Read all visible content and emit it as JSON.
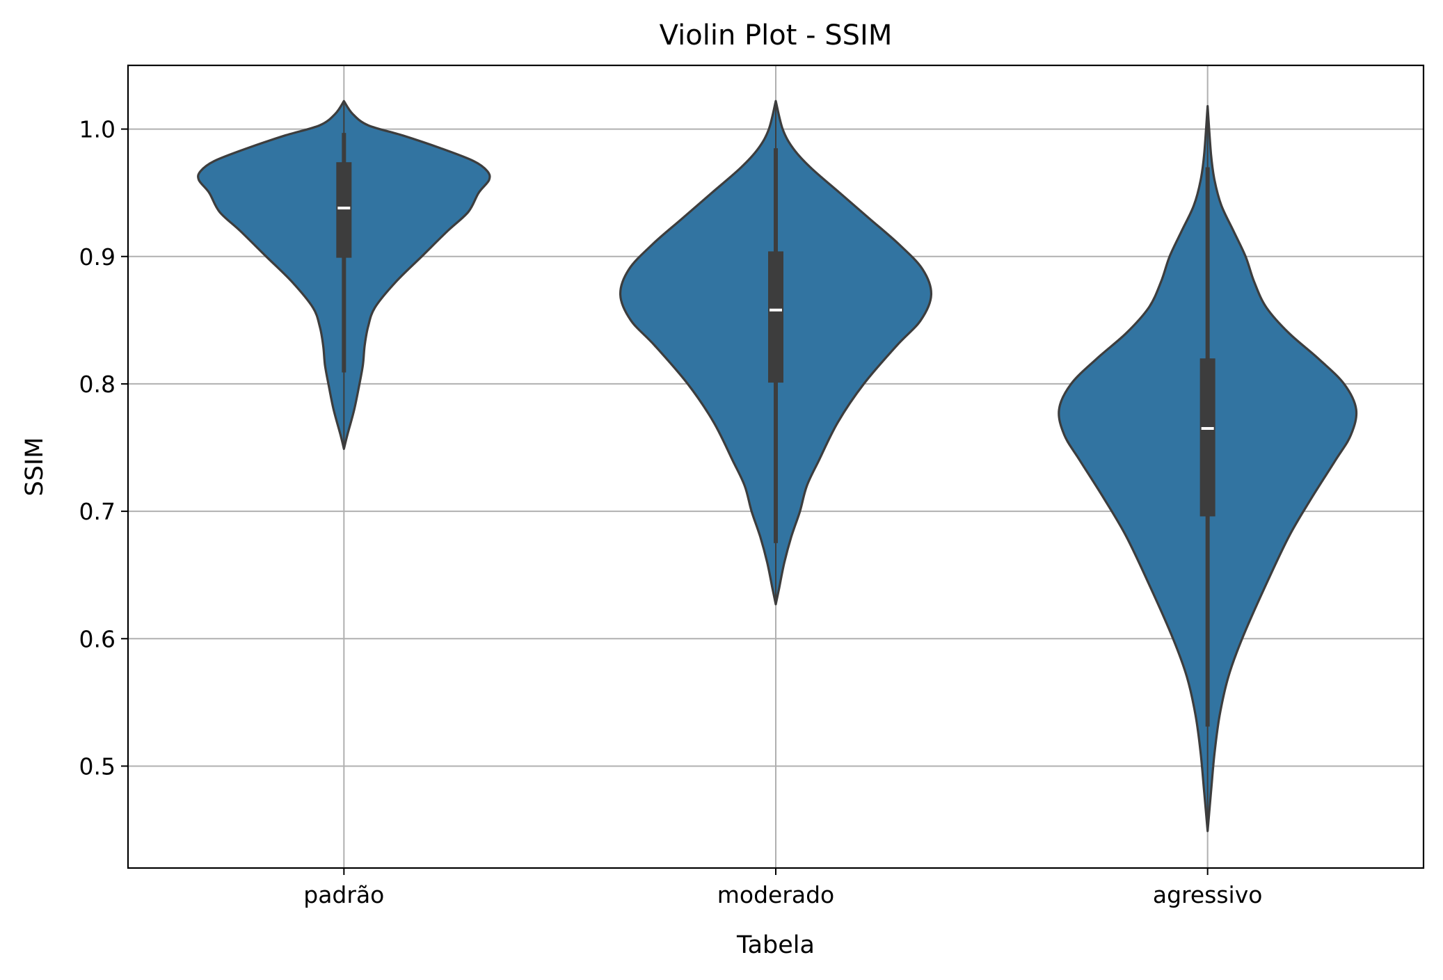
{
  "chart_data": {
    "type": "violin",
    "title": "Violin Plot - SSIM",
    "xlabel": "Tabela",
    "ylabel": "SSIM",
    "categories": [
      "padrão",
      "moderado",
      "agressivo"
    ],
    "ylim": [
      0.42,
      1.05
    ],
    "yticks": [
      0.5,
      0.6,
      0.7,
      0.8,
      0.9,
      1.0
    ],
    "ytick_labels": [
      "0.5",
      "0.6",
      "0.7",
      "0.8",
      "0.9",
      "1.0"
    ],
    "grid": true,
    "fill_color": "#3274a1",
    "edge_color": "#3d3d3d",
    "violins": [
      {
        "category": "padrão",
        "median": 0.938,
        "q1": 0.899,
        "q3": 0.974,
        "whisker_low": 0.809,
        "whisker_high": 0.997,
        "kde_range": [
          0.749,
          1.022
        ],
        "profile": [
          [
            0.749,
            0.0
          ],
          [
            0.76,
            0.02
          ],
          [
            0.78,
            0.06
          ],
          [
            0.8,
            0.09
          ],
          [
            0.815,
            0.11
          ],
          [
            0.83,
            0.12
          ],
          [
            0.845,
            0.14
          ],
          [
            0.86,
            0.18
          ],
          [
            0.88,
            0.3
          ],
          [
            0.9,
            0.45
          ],
          [
            0.92,
            0.6
          ],
          [
            0.935,
            0.72
          ],
          [
            0.95,
            0.78
          ],
          [
            0.96,
            0.84
          ],
          [
            0.967,
            0.83
          ],
          [
            0.975,
            0.75
          ],
          [
            0.985,
            0.56
          ],
          [
            0.995,
            0.34
          ],
          [
            1.003,
            0.14
          ],
          [
            1.012,
            0.05
          ],
          [
            1.022,
            0.0
          ]
        ]
      },
      {
        "category": "moderado",
        "median": 0.858,
        "q1": 0.801,
        "q3": 0.904,
        "whisker_low": 0.675,
        "whisker_high": 0.985,
        "kde_range": [
          0.627,
          1.022
        ],
        "profile": [
          [
            0.627,
            0.0
          ],
          [
            0.64,
            0.02
          ],
          [
            0.66,
            0.05
          ],
          [
            0.68,
            0.09
          ],
          [
            0.7,
            0.14
          ],
          [
            0.72,
            0.18
          ],
          [
            0.74,
            0.25
          ],
          [
            0.77,
            0.36
          ],
          [
            0.8,
            0.51
          ],
          [
            0.83,
            0.7
          ],
          [
            0.85,
            0.84
          ],
          [
            0.87,
            0.9
          ],
          [
            0.89,
            0.85
          ],
          [
            0.91,
            0.71
          ],
          [
            0.93,
            0.54
          ],
          [
            0.95,
            0.37
          ],
          [
            0.97,
            0.2
          ],
          [
            0.985,
            0.1
          ],
          [
            1.0,
            0.04
          ],
          [
            1.022,
            0.0
          ]
        ]
      },
      {
        "category": "agressivo",
        "median": 0.765,
        "q1": 0.696,
        "q3": 0.82,
        "whisker_low": 0.531,
        "whisker_high": 0.97,
        "kde_range": [
          0.449,
          1.018
        ],
        "profile": [
          [
            0.449,
            0.0
          ],
          [
            0.48,
            0.02
          ],
          [
            0.51,
            0.04
          ],
          [
            0.54,
            0.07
          ],
          [
            0.57,
            0.12
          ],
          [
            0.6,
            0.2
          ],
          [
            0.64,
            0.33
          ],
          [
            0.68,
            0.47
          ],
          [
            0.71,
            0.6
          ],
          [
            0.74,
            0.74
          ],
          [
            0.76,
            0.83
          ],
          [
            0.78,
            0.86
          ],
          [
            0.8,
            0.79
          ],
          [
            0.82,
            0.64
          ],
          [
            0.84,
            0.47
          ],
          [
            0.86,
            0.34
          ],
          [
            0.88,
            0.27
          ],
          [
            0.9,
            0.22
          ],
          [
            0.92,
            0.15
          ],
          [
            0.94,
            0.08
          ],
          [
            0.96,
            0.04
          ],
          [
            0.98,
            0.02
          ],
          [
            1.018,
            0.0
          ]
        ]
      }
    ]
  }
}
